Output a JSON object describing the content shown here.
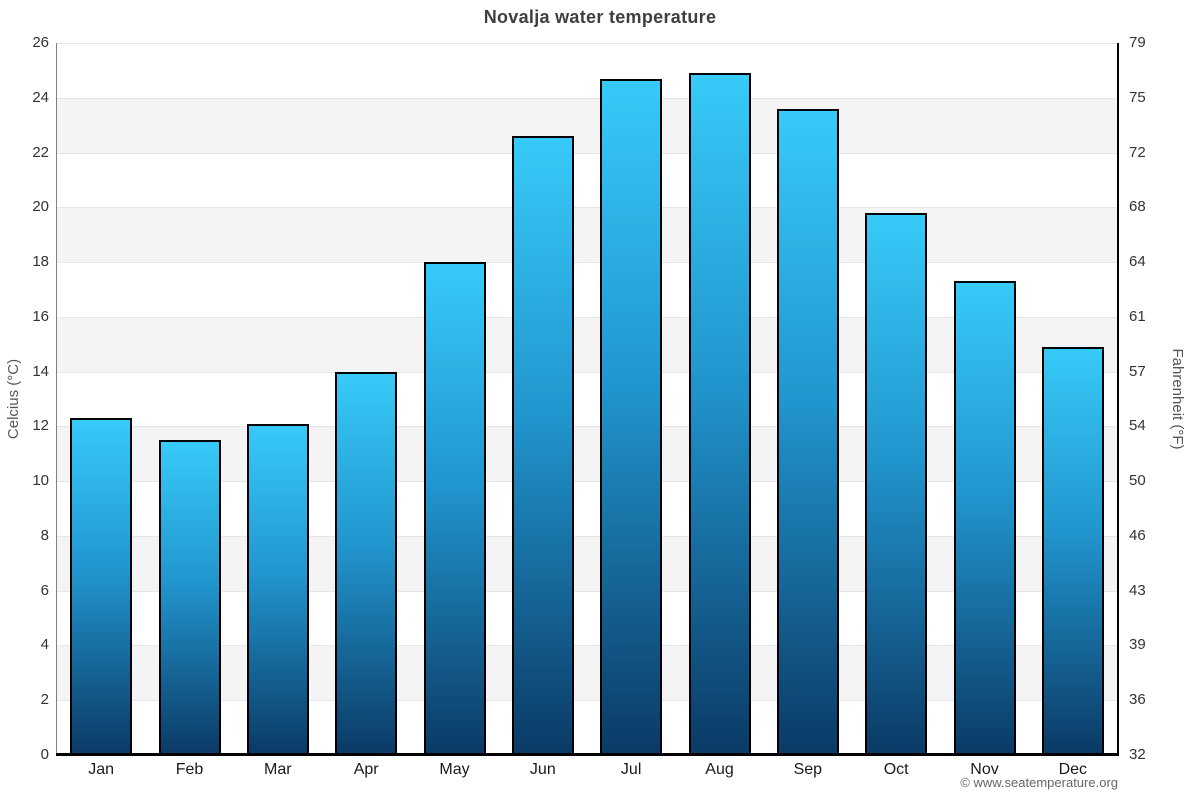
{
  "chart_data": {
    "type": "bar",
    "title": "Novalja water temperature",
    "categories": [
      "Jan",
      "Feb",
      "Mar",
      "Apr",
      "May",
      "Jun",
      "Jul",
      "Aug",
      "Sep",
      "Oct",
      "Nov",
      "Dec"
    ],
    "values": [
      12.3,
      11.5,
      12.1,
      14.0,
      18.0,
      22.6,
      24.7,
      24.9,
      23.6,
      19.8,
      17.3,
      14.9
    ],
    "unit": "°C",
    "ylabel_left": "Celcius (°C)",
    "ylabel_right": "Fahrenheit (°F)",
    "ylim": [
      0,
      26
    ],
    "yticks_celsius": [
      0,
      2,
      4,
      6,
      8,
      10,
      12,
      14,
      16,
      18,
      20,
      22,
      24,
      26
    ],
    "yticks_fahrenheit": [
      32,
      36,
      39,
      43,
      46,
      50,
      54,
      57,
      61,
      64,
      68,
      72,
      75,
      79
    ],
    "grid": "alternating-horizontal-bands",
    "legend": "none",
    "bar_gradient_top": "#37caf8",
    "bar_gradient_mid": "#2196ce",
    "bar_gradient_bottom": "#0b3a66",
    "bar_border_color": "#000000",
    "band_color": "#f4f4f4",
    "gridline_color": "#e6e6e6"
  },
  "footer": {
    "credit": "© www.seatemperature.org"
  }
}
